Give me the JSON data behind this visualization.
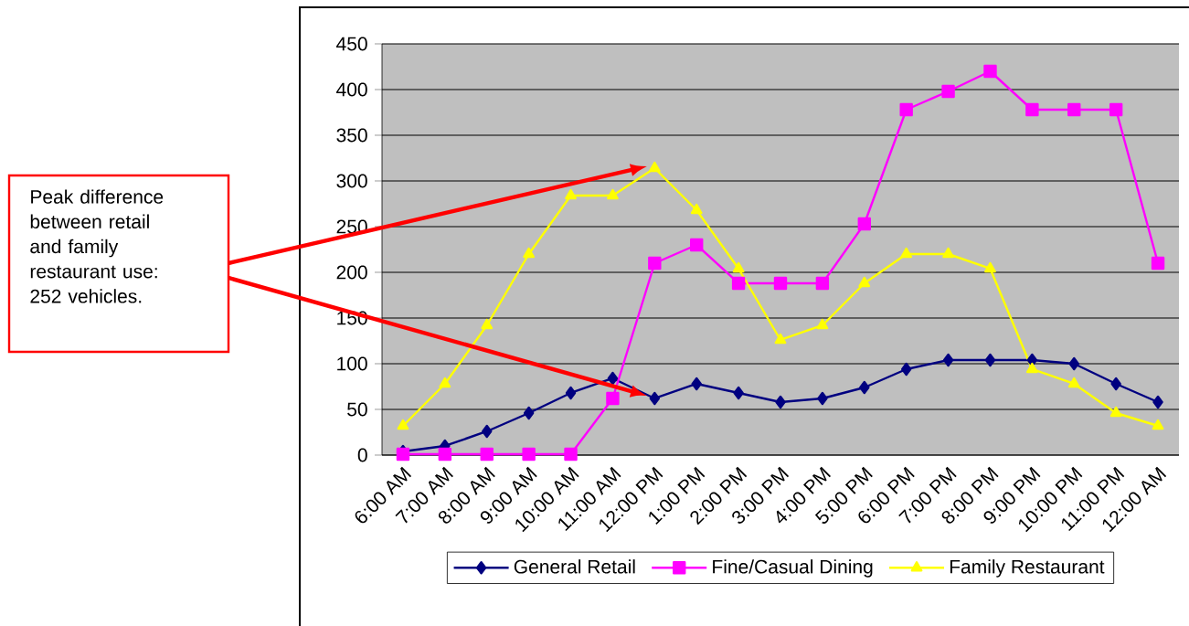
{
  "chart_data": {
    "type": "line",
    "categories": [
      "6:00 AM",
      "7:00 AM",
      "8:00 AM",
      "9:00 AM",
      "10:00 AM",
      "11:00 AM",
      "12:00 PM",
      "1:00 PM",
      "2:00 PM",
      "3:00 PM",
      "4:00 PM",
      "5:00 PM",
      "6:00 PM",
      "7:00 PM",
      "8:00 PM",
      "9:00 PM",
      "10:00 PM",
      "11:00 PM",
      "12:00 AM"
    ],
    "series": [
      {
        "name": "General Retail",
        "color": "#000080",
        "marker": "diamond",
        "values": [
          4,
          10,
          26,
          46,
          68,
          84,
          62,
          78,
          68,
          58,
          62,
          74,
          94,
          104,
          104,
          104,
          100,
          78,
          58
        ]
      },
      {
        "name": "Fine/Casual Dining",
        "color": "#ff00ff",
        "marker": "square",
        "values": [
          1,
          1,
          1,
          1,
          1,
          62,
          210,
          230,
          188,
          188,
          188,
          253,
          378,
          398,
          420,
          378,
          378,
          378,
          210
        ]
      },
      {
        "name": "Family Restaurant",
        "color": "#ffff00",
        "marker": "triangle",
        "values": [
          32,
          78,
          142,
          220,
          284,
          284,
          314,
          268,
          204,
          126,
          142,
          188,
          220,
          220,
          204,
          94,
          78,
          46,
          32
        ]
      }
    ],
    "ylim": [
      0,
      450
    ],
    "yticks": [
      0,
      50,
      100,
      150,
      200,
      250,
      300,
      350,
      400,
      450
    ],
    "grid": "y",
    "legend": "bottom",
    "line_style": "solid",
    "annotations": [
      "Peak difference between retail and family restaurant use: 252 vehicles."
    ]
  }
}
